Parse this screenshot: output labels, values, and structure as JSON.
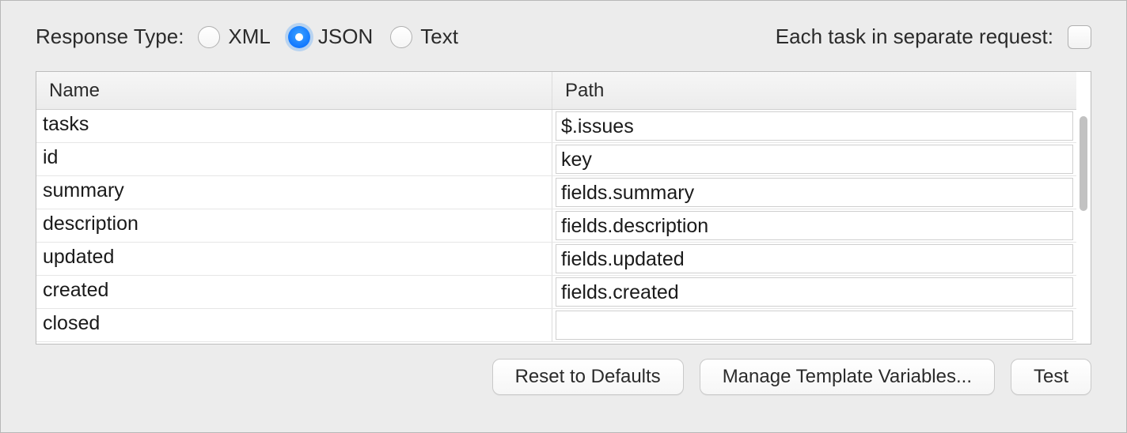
{
  "responseType": {
    "label": "Response Type:",
    "options": [
      {
        "label": "XML",
        "selected": false
      },
      {
        "label": "JSON",
        "selected": true
      },
      {
        "label": "Text",
        "selected": false
      }
    ]
  },
  "separateRequest": {
    "label": "Each task in separate request:",
    "checked": false
  },
  "table": {
    "columns": {
      "name": "Name",
      "path": "Path"
    },
    "rows": [
      {
        "name": "tasks",
        "path": "$.issues"
      },
      {
        "name": "id",
        "path": "key"
      },
      {
        "name": "summary",
        "path": "fields.summary"
      },
      {
        "name": "description",
        "path": "fields.description"
      },
      {
        "name": "updated",
        "path": "fields.updated"
      },
      {
        "name": "created",
        "path": "fields.created"
      },
      {
        "name": "closed",
        "path": ""
      }
    ]
  },
  "buttons": {
    "reset": "Reset to Defaults",
    "manage": "Manage Template Variables...",
    "test": "Test"
  },
  "colors": {
    "panel_bg": "#ececec",
    "border": "#bcbcbc",
    "accent": "#1178ff",
    "text": "#2b2b2b"
  }
}
